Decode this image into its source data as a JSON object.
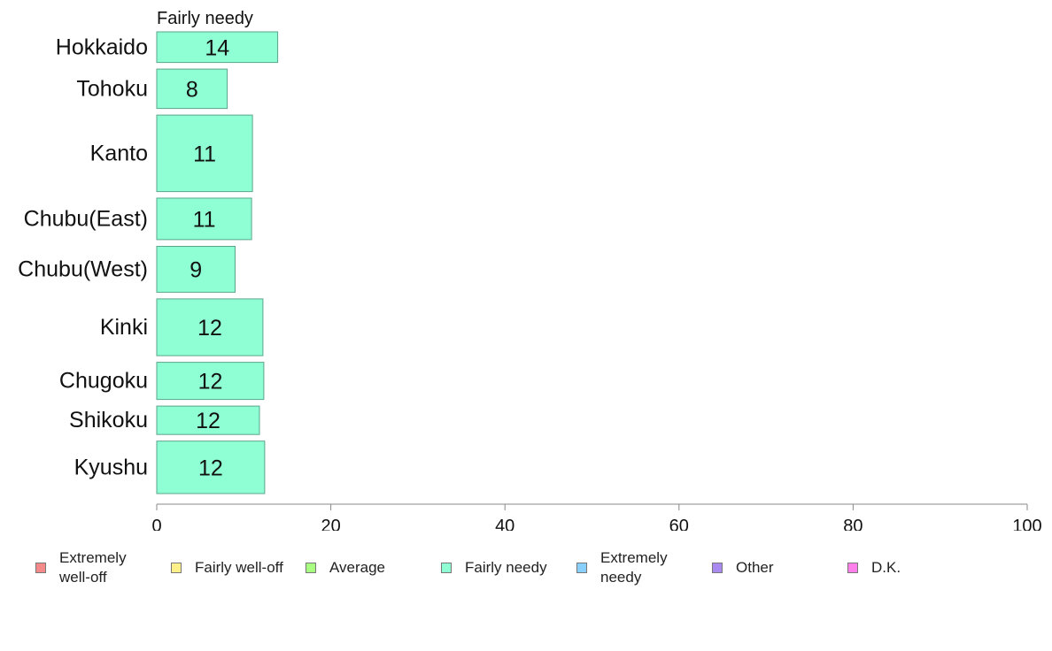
{
  "chart_data": {
    "type": "bar",
    "orientation": "horizontal",
    "panel_title": "Fairly needy",
    "categories": [
      "Hokkaido",
      "Tohoku",
      "Kanto",
      "Chubu(East)",
      "Chubu(West)",
      "Kinki",
      "Chugoku",
      "Shikoku",
      "Kyushu"
    ],
    "relative_widths": [
      0.7,
      0.9,
      1.75,
      0.95,
      1.05,
      1.3,
      0.85,
      0.65,
      1.2
    ],
    "series": [
      {
        "name": "Fairly needy",
        "color": "#8fffd4",
        "values": [
          14,
          8,
          11,
          11,
          9,
          12,
          12,
          12,
          12
        ],
        "exact": [
          13.9,
          8.1,
          11.0,
          10.9,
          9.0,
          12.2,
          12.3,
          11.8,
          12.4
        ],
        "labels": [
          "14",
          "8",
          "11",
          "11",
          "9",
          "12",
          "12",
          "12",
          "12"
        ]
      }
    ],
    "xlim": [
      0,
      100
    ],
    "xticks": [
      "0",
      "20",
      "40",
      "60",
      "80",
      "100"
    ],
    "grid": false,
    "legend_position": "bottom"
  },
  "legend": {
    "items": [
      {
        "label": "Extremely well-off",
        "color": "#f58a8a"
      },
      {
        "label": "Fairly well-off",
        "color": "#fff08a"
      },
      {
        "label": "Average",
        "color": "#a8ff80"
      },
      {
        "label": "Fairly needy",
        "color": "#8fffd4"
      },
      {
        "label": "Extremely needy",
        "color": "#8ad0ff"
      },
      {
        "label": "Other",
        "color": "#a98af0"
      },
      {
        "label": "D.K.",
        "color": "#ff80ea"
      }
    ]
  }
}
